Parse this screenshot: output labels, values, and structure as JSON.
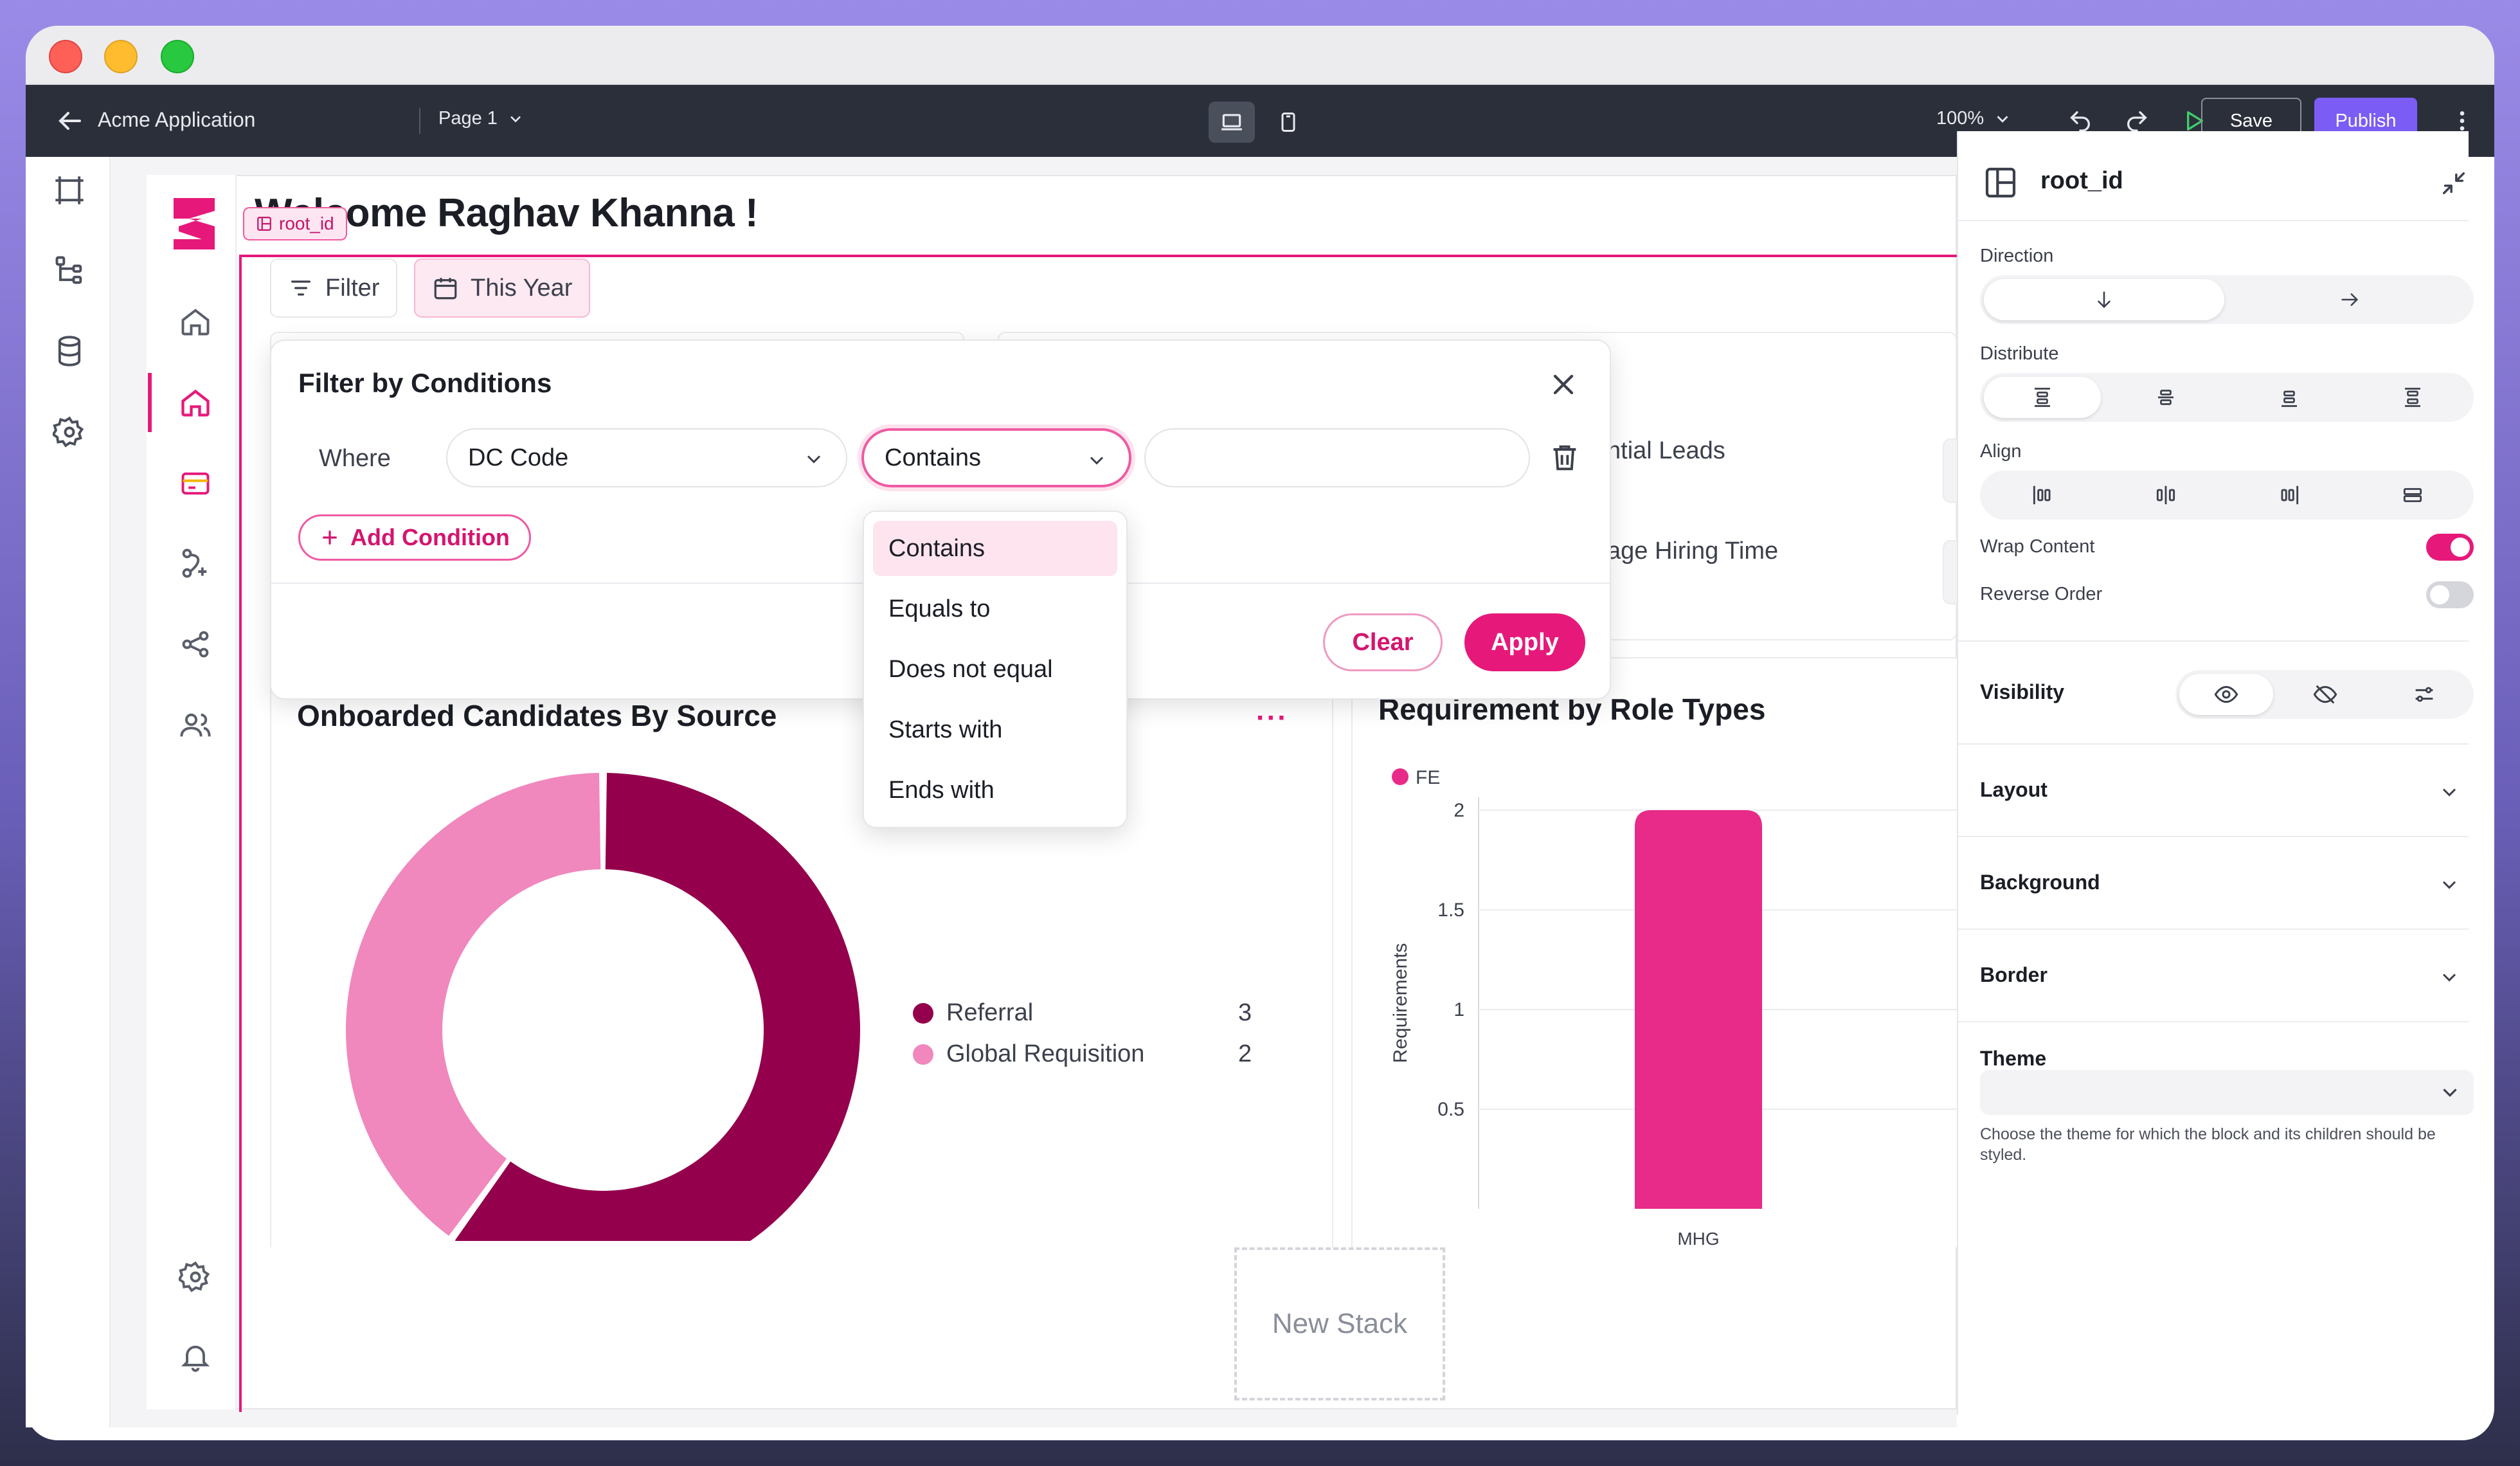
{
  "topbar": {
    "app_name": "Acme Application",
    "page": "Page 1",
    "zoom": "100%",
    "save_label": "Save",
    "publish_label": "Publish"
  },
  "colors": {
    "accent": "#e6197a",
    "publish": "#7b5cf5",
    "referral": "#94004c",
    "global_requisition": "#f087bd"
  },
  "app": {
    "welcome": "Welcome Raghav Khanna !",
    "root_tag": "root_id",
    "filter_chip": "Filter",
    "year_chip": "This Year"
  },
  "filter_popover": {
    "title": "Filter by Conditions",
    "where_label": "Where",
    "field_value": "DC Code",
    "operator_value": "Contains",
    "value_input": "",
    "add_condition": "Add Condition",
    "clear": "Clear",
    "apply": "Apply",
    "operator_options": [
      "Contains",
      "Equals to",
      "Does not equal",
      "Starts with",
      "Ends with"
    ]
  },
  "stats": {
    "potential_leads_fragment": "ntial Leads",
    "hiring_time_fragment": "age Hiring Time"
  },
  "cards": {
    "onboarded_title": "Onboarded Candidates By Source",
    "requirement_title": "Requirement by Role Types"
  },
  "new_stack": "New Stack",
  "right_panel": {
    "title": "root_id",
    "direction": "Direction",
    "distribute": "Distribute",
    "align": "Align",
    "wrap_content": "Wrap Content",
    "wrap_on": true,
    "reverse_order": "Reverse Order",
    "reverse_on": false,
    "visibility": "Visibility",
    "layout": "Layout",
    "background": "Background",
    "border": "Border",
    "theme": "Theme",
    "theme_help": "Choose the theme for which the block and its children should be styled."
  },
  "chart_data": [
    {
      "type": "pie",
      "title": "Onboarded Candidates By Source",
      "categories": [
        "Referral",
        "Global Requisition"
      ],
      "values": [
        3,
        2
      ],
      "legend": "right"
    },
    {
      "type": "bar",
      "title": "Requirement by Role Types",
      "categories": [
        "MHG"
      ],
      "series": [
        {
          "name": "FE",
          "values": [
            2
          ]
        }
      ],
      "ylabel": "Requirements",
      "xlabel": "",
      "ylim": [
        0,
        2
      ],
      "yticks": [
        "0.5",
        "1",
        "1.5",
        "2"
      ],
      "grid": true,
      "legend": "top-left"
    }
  ]
}
